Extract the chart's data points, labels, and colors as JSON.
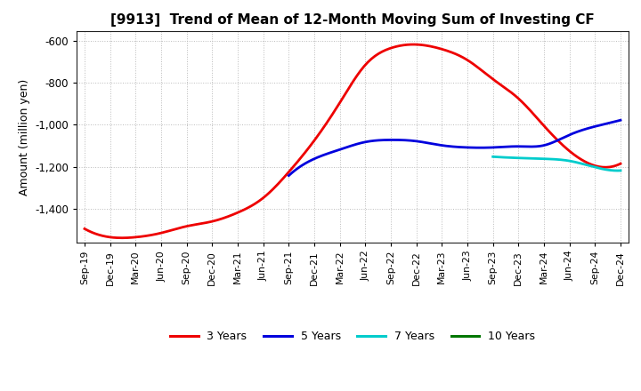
{
  "title": "[9913]  Trend of Mean of 12-Month Moving Sum of Investing CF",
  "ylabel": "Amount (million yen)",
  "ylim": [
    -1560,
    -555
  ],
  "yticks": [
    -600,
    -800,
    -1000,
    -1200,
    -1400
  ],
  "x_labels": [
    "Sep-19",
    "Dec-19",
    "Mar-20",
    "Jun-20",
    "Sep-20",
    "Dec-20",
    "Mar-21",
    "Jun-21",
    "Sep-21",
    "Dec-21",
    "Mar-22",
    "Jun-22",
    "Sep-22",
    "Dec-22",
    "Mar-23",
    "Jun-23",
    "Sep-23",
    "Dec-23",
    "Mar-24",
    "Jun-24",
    "Sep-24",
    "Dec-24"
  ],
  "series_order": [
    "3 Years",
    "5 Years",
    "7 Years",
    "10 Years"
  ],
  "series": {
    "3 Years": {
      "color": "#ee0000",
      "data_x": [
        0,
        1,
        2,
        3,
        4,
        5,
        6,
        7,
        8,
        9,
        10,
        11,
        12,
        13,
        14,
        15,
        16,
        17,
        18,
        19,
        20,
        21
      ],
      "data_y": [
        -1495,
        -1535,
        -1535,
        -1515,
        -1483,
        -1460,
        -1418,
        -1348,
        -1225,
        -1075,
        -895,
        -715,
        -635,
        -618,
        -640,
        -692,
        -783,
        -875,
        -1005,
        -1125,
        -1195,
        -1185
      ]
    },
    "5 Years": {
      "color": "#0000dd",
      "data_x": [
        8,
        9,
        10,
        11,
        12,
        13,
        14,
        15,
        16,
        17,
        18,
        19,
        20,
        21
      ],
      "data_y": [
        -1242,
        -1162,
        -1118,
        -1082,
        -1072,
        -1078,
        -1098,
        -1108,
        -1108,
        -1103,
        -1098,
        -1048,
        -1008,
        -978
      ]
    },
    "7 Years": {
      "color": "#00cccc",
      "data_x": [
        16,
        17,
        18,
        19,
        20,
        21
      ],
      "data_y": [
        -1152,
        -1158,
        -1162,
        -1172,
        -1202,
        -1218
      ]
    },
    "10 Years": {
      "color": "#007700",
      "data_x": [],
      "data_y": []
    }
  },
  "legend_entries": [
    "3 Years",
    "5 Years",
    "7 Years",
    "10 Years"
  ],
  "legend_colors": [
    "#ee0000",
    "#0000dd",
    "#00cccc",
    "#007700"
  ],
  "background_color": "#ffffff",
  "grid_color": "#bbbbbb",
  "linewidth": 2.0
}
